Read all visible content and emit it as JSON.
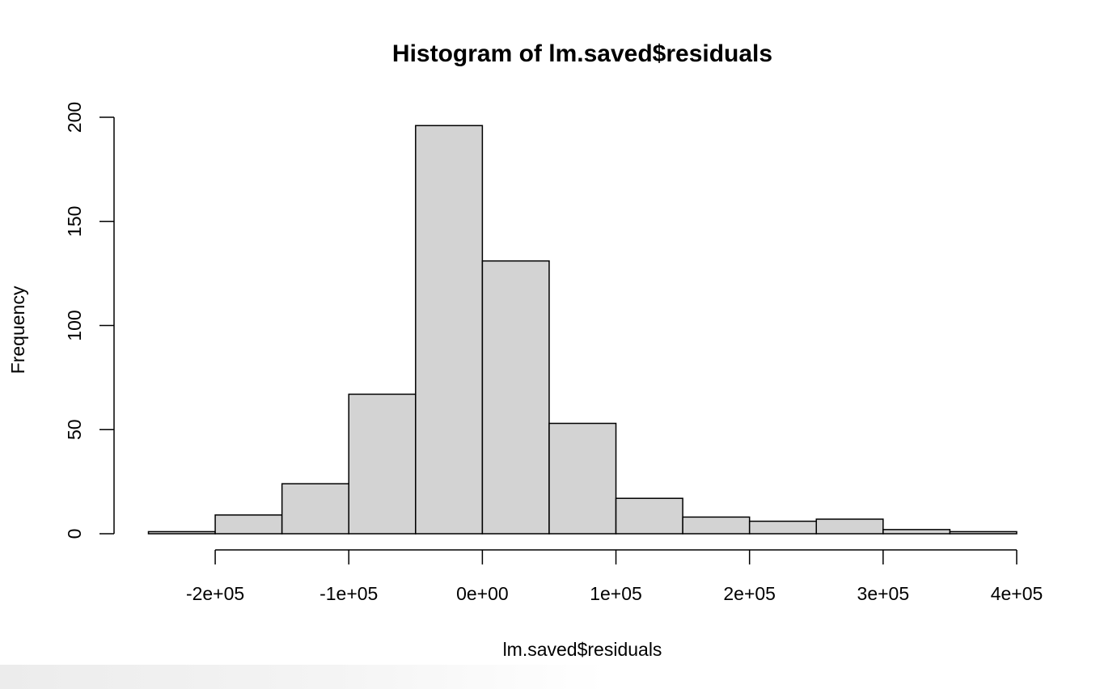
{
  "chart_data": {
    "type": "bar",
    "title": "Histogram of lm.saved$residuals",
    "xlabel": "lm.saved$residuals",
    "ylabel": "Frequency",
    "bin_edges": [
      -250000,
      -200000,
      -150000,
      -100000,
      -50000,
      0,
      50000,
      100000,
      150000,
      200000,
      250000,
      300000,
      350000,
      400000
    ],
    "values": [
      1,
      9,
      24,
      67,
      196,
      131,
      53,
      17,
      8,
      6,
      7,
      2,
      1
    ],
    "xlim": [
      -250000,
      400000
    ],
    "ylim": [
      0,
      200
    ],
    "x_ticks": [
      -200000,
      -100000,
      0,
      100000,
      200000,
      300000,
      400000
    ],
    "x_tick_labels": [
      "-2e+05",
      "-1e+05",
      "0e+00",
      "1e+05",
      "2e+05",
      "3e+05",
      "4e+05"
    ],
    "y_ticks": [
      0,
      50,
      100,
      150,
      200
    ],
    "y_tick_labels": [
      "0",
      "50",
      "100",
      "150",
      "200"
    ],
    "bar_color": "#d3d3d3",
    "bar_border_color": "#000000",
    "grid": false,
    "legend": "none"
  }
}
